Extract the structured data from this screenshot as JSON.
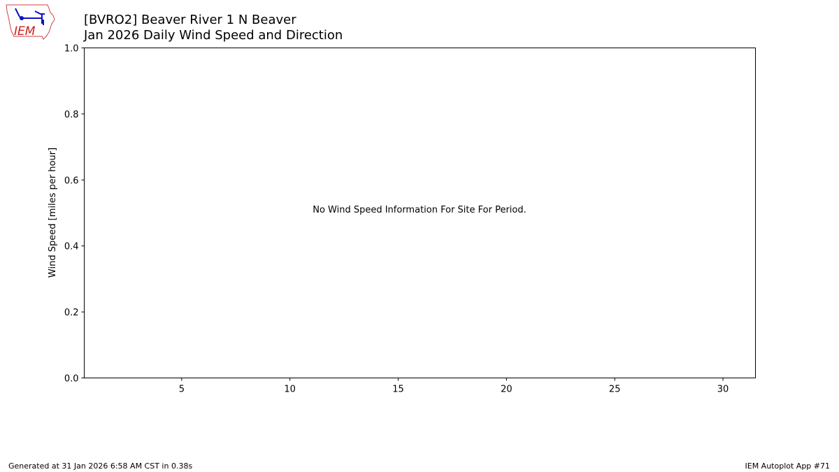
{
  "logo": {
    "text": "IEM",
    "colors": {
      "outline": "#d04040",
      "symbol": "#1010c0",
      "text": "#cc2020"
    }
  },
  "chart_data": {
    "type": "bar",
    "title": "[BVRO2] Beaver River 1 N Beaver",
    "subtitle": "Jan 2026 Daily Wind Speed and Direction",
    "xlabel": "",
    "ylabel": "Wind Speed [miles per hour]",
    "xlim": [
      0.5,
      31.5
    ],
    "ylim": [
      0,
      1
    ],
    "x_ticks": [
      "5",
      "10",
      "15",
      "20",
      "25",
      "30"
    ],
    "y_ticks": [
      "0.0",
      "0.2",
      "0.4",
      "0.6",
      "0.8",
      "1.0"
    ],
    "grid": false,
    "values": [],
    "annotation": "No Wind Speed Information For Site For Period."
  },
  "footer": {
    "left": "Generated at 31 Jan 2026 6:58 AM CST in 0.38s",
    "right": "IEM Autoplot App #71"
  }
}
